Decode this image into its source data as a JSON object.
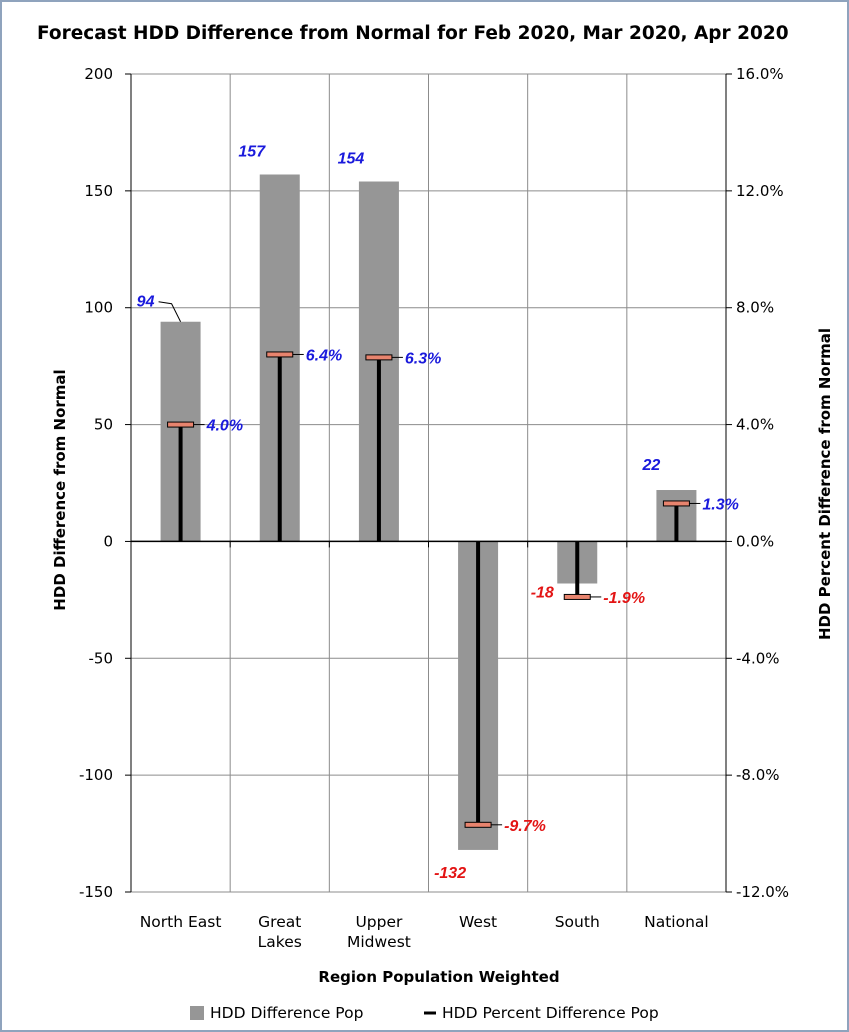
{
  "chart_data": {
    "type": "bar",
    "title": "Forecast HDD Difference from Normal for Feb 2020, Mar 2020, Apr 2020",
    "xlabel": "Region Population Weighted",
    "ylabel": "HDD Difference from Normal",
    "y2label": "HDD Percent Difference from Normal",
    "ylim": [
      -150,
      200
    ],
    "y2lim": [
      -12.0,
      16.0
    ],
    "yticks": [
      "200",
      "150",
      "100",
      "50",
      "0",
      "-50",
      "-100",
      "-150"
    ],
    "y2ticks": [
      "16.0%",
      "12.0%",
      "8.0%",
      "4.0%",
      "0.0%",
      "-4.0%",
      "-8.0%",
      "-12.0%"
    ],
    "grid": true,
    "legend_position": "bottom",
    "categories": [
      "North East",
      "Great Lakes",
      "Upper Midwest",
      "West",
      "South",
      "National"
    ],
    "category_lines": [
      [
        "North East"
      ],
      [
        "Great",
        "Lakes"
      ],
      [
        "Upper",
        "Midwest"
      ],
      [
        "West"
      ],
      [
        "South"
      ],
      [
        "National"
      ]
    ],
    "series": [
      {
        "name": "HDD Difference  Pop",
        "type": "bar",
        "axis": "left",
        "color": "#969696",
        "values": [
          94,
          157,
          154,
          -132,
          -18,
          22
        ],
        "labels": [
          "94",
          "157",
          "154",
          "-132",
          "-18",
          "22"
        ]
      },
      {
        "name": "HDD Percent Difference  Pop",
        "type": "error-bar-from-zero",
        "axis": "right",
        "color": "#000000",
        "values": [
          4.0,
          6.4,
          6.3,
          -9.7,
          -1.9,
          1.3
        ],
        "labels": [
          "4.0%",
          "6.4%",
          "6.3%",
          "-9.7%",
          "-1.9%",
          "1.3%"
        ]
      }
    ],
    "positive_label_color": "#1a1adc",
    "negative_label_color": "#e31414"
  }
}
